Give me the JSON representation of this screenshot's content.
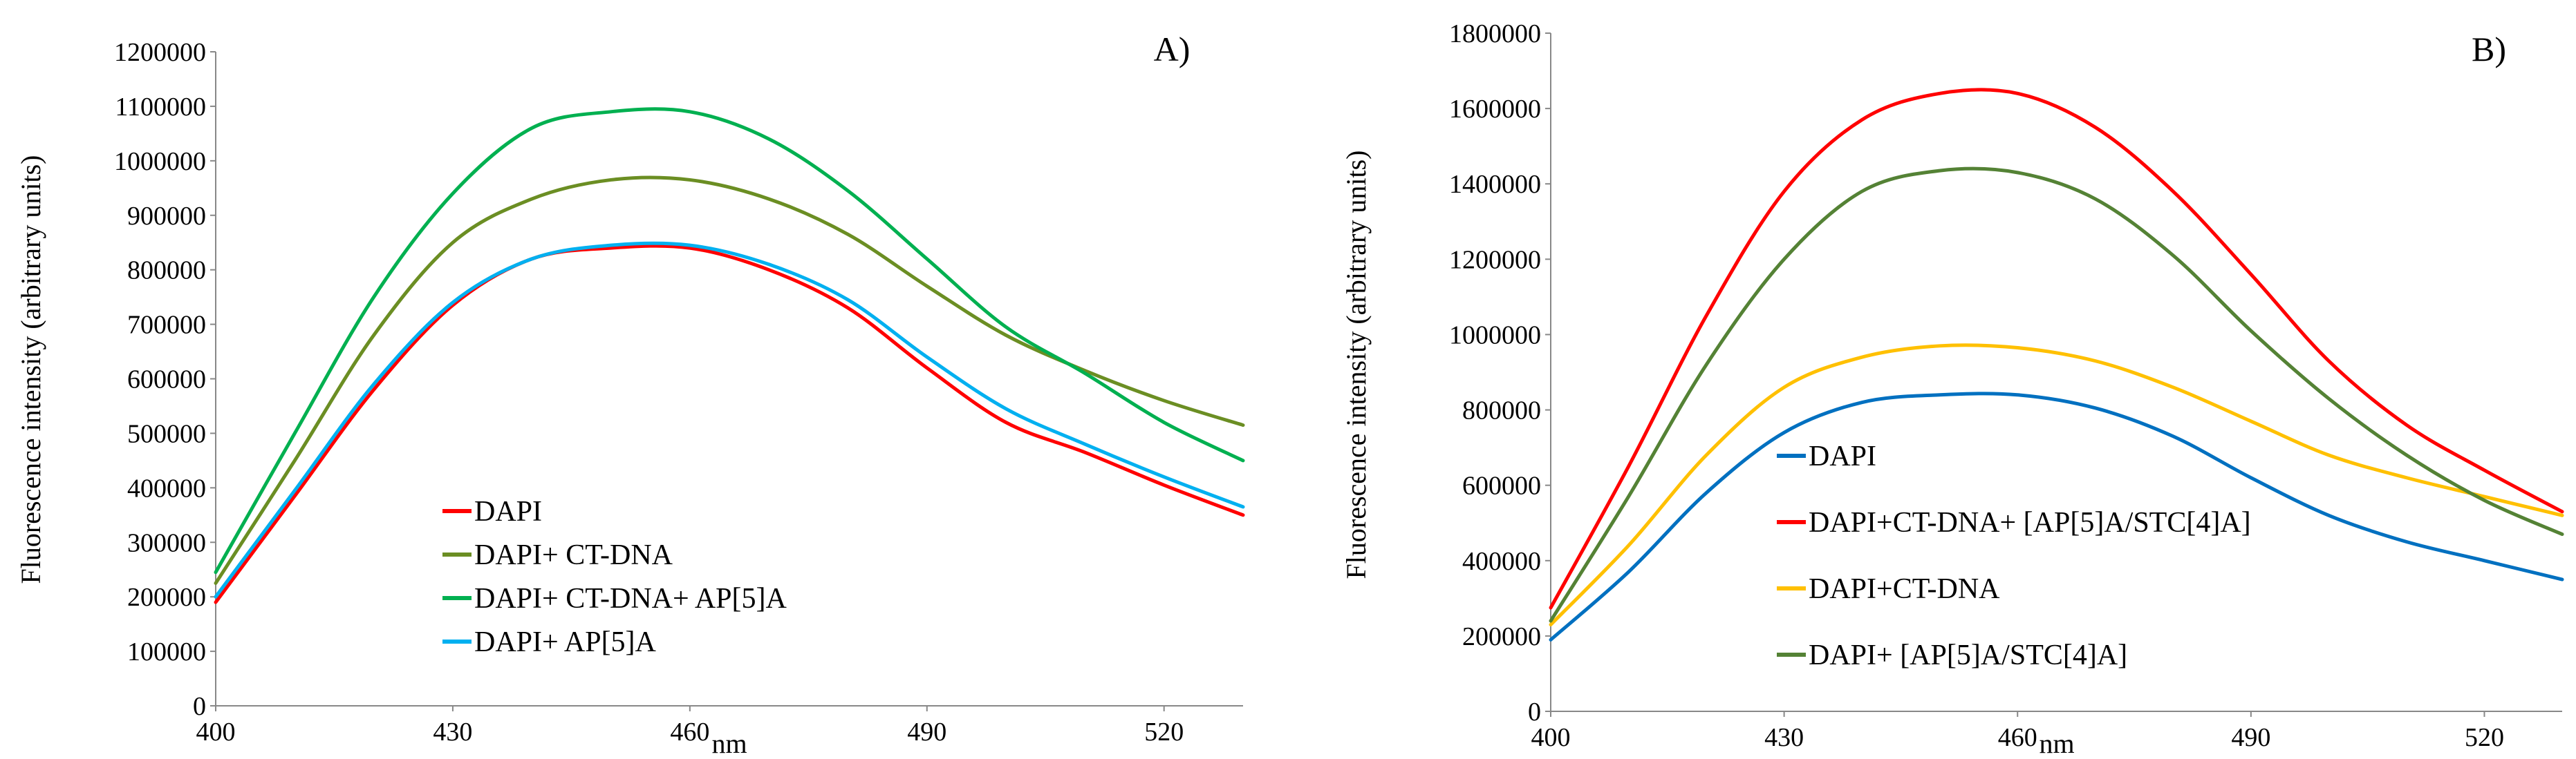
{
  "chart_data": [
    {
      "panel": "A)",
      "type": "line",
      "xlabel": "nm",
      "ylabel": "Fluorescence  intensity  (arbitrary  units)",
      "xlim": [
        400,
        530
      ],
      "xticks": [
        400,
        430,
        460,
        490,
        520
      ],
      "ylim": [
        0,
        1200000
      ],
      "yticks": [
        0,
        100000,
        200000,
        300000,
        400000,
        500000,
        600000,
        700000,
        800000,
        900000,
        1000000,
        1100000,
        1200000
      ],
      "ytick_labels": [
        "0",
        "100000",
        "200000",
        "300000",
        "400000",
        "500000",
        "600000",
        "700000",
        "800000",
        "900000",
        "1000000",
        "1100000",
        "1200000"
      ],
      "series": [
        {
          "name": "DAPI",
          "color": "#ff0000",
          "x": [
            400,
            410,
            420,
            430,
            440,
            450,
            460,
            470,
            480,
            490,
            500,
            510,
            520,
            530
          ],
          "values": [
            190000,
            385000,
            580000,
            735000,
            820000,
            840000,
            840000,
            800000,
            730000,
            620000,
            520000,
            465000,
            405000,
            350000
          ]
        },
        {
          "name": "DAPI+ CT-DNA",
          "color": "#6b8e23",
          "x": [
            400,
            410,
            420,
            430,
            440,
            450,
            460,
            470,
            480,
            490,
            500,
            510,
            520,
            530
          ],
          "values": [
            225000,
            450000,
            680000,
            850000,
            930000,
            965000,
            965000,
            930000,
            865000,
            770000,
            680000,
            615000,
            560000,
            515000
          ]
        },
        {
          "name": "DAPI+ CT-DNA+ AP[5]A",
          "color": "#00b050",
          "x": [
            400,
            410,
            420,
            430,
            440,
            450,
            460,
            470,
            480,
            490,
            500,
            510,
            520,
            530
          ],
          "values": [
            245000,
            500000,
            750000,
            940000,
            1060000,
            1090000,
            1090000,
            1040000,
            945000,
            820000,
            695000,
            610000,
            520000,
            450000
          ]
        },
        {
          "name": "DAPI+ AP[5]A",
          "color": "#00b0f0",
          "x": [
            400,
            410,
            420,
            430,
            440,
            450,
            460,
            470,
            480,
            490,
            500,
            510,
            520,
            530
          ],
          "values": [
            200000,
            395000,
            590000,
            740000,
            820000,
            845000,
            845000,
            810000,
            745000,
            640000,
            545000,
            480000,
            420000,
            365000
          ]
        }
      ]
    },
    {
      "panel": "B)",
      "type": "line",
      "xlabel": "nm",
      "ylabel": "Fluorescence  intensity  (arbitrary  units)",
      "xlim": [
        400,
        530
      ],
      "xticks": [
        400,
        430,
        460,
        490,
        520
      ],
      "ylim": [
        0,
        1800000
      ],
      "yticks": [
        0,
        200000,
        400000,
        600000,
        800000,
        1000000,
        1200000,
        1400000,
        1600000,
        1800000
      ],
      "ytick_labels": [
        "0",
        "200000",
        "400000",
        "600000",
        "800000",
        "1000000",
        "1200000",
        "1400000",
        "1600000",
        "1800000"
      ],
      "series": [
        {
          "name": "DAPI",
          "color": "#0070c0",
          "x": [
            400,
            410,
            420,
            430,
            440,
            450,
            460,
            470,
            480,
            490,
            500,
            510,
            520,
            530
          ],
          "values": [
            190000,
            370000,
            580000,
            740000,
            820000,
            840000,
            840000,
            805000,
            730000,
            620000,
            520000,
            450000,
            400000,
            350000
          ]
        },
        {
          "name": "DAPI+CT-DNA+ [AP[5]A/STC[4]A]",
          "color": "#ff0000",
          "x": [
            400,
            410,
            420,
            430,
            440,
            450,
            460,
            470,
            480,
            490,
            500,
            510,
            520,
            530
          ],
          "values": [
            275000,
            650000,
            1050000,
            1380000,
            1570000,
            1640000,
            1640000,
            1550000,
            1380000,
            1160000,
            930000,
            760000,
            640000,
            530000
          ]
        },
        {
          "name": "DAPI+CT-DNA",
          "color": "#ffc000",
          "x": [
            400,
            410,
            420,
            430,
            440,
            450,
            460,
            470,
            480,
            490,
            500,
            510,
            520,
            530
          ],
          "values": [
            230000,
            440000,
            680000,
            860000,
            940000,
            970000,
            965000,
            930000,
            860000,
            770000,
            680000,
            620000,
            570000,
            520000
          ]
        },
        {
          "name": "DAPI+ [AP[5]A/STC[4]A]",
          "color": "#548235",
          "x": [
            400,
            410,
            420,
            430,
            440,
            450,
            460,
            470,
            480,
            490,
            500,
            510,
            520,
            530
          ],
          "values": [
            240000,
            570000,
            920000,
            1200000,
            1380000,
            1435000,
            1430000,
            1360000,
            1210000,
            1010000,
            830000,
            680000,
            560000,
            470000
          ]
        }
      ]
    }
  ]
}
